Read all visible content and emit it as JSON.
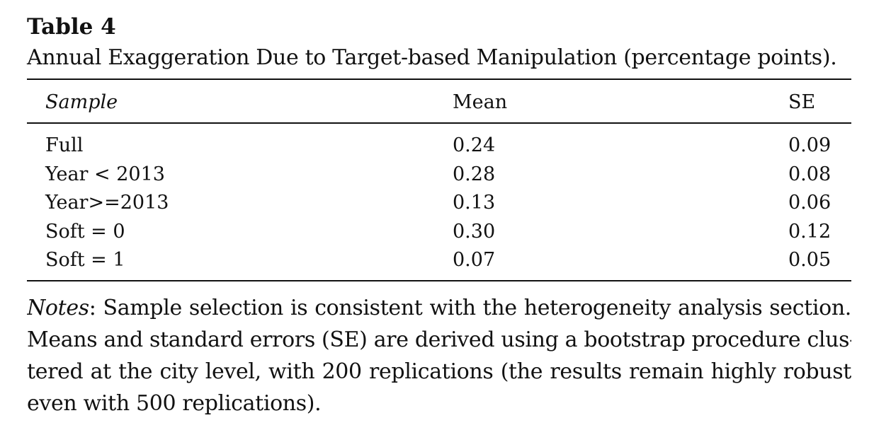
{
  "table": {
    "label": "Table 4",
    "caption": "Annual Exaggeration Due to Target-based Manipulation (percentage points).",
    "headers": {
      "sample": "Sample",
      "mean": "Mean",
      "se": "SE"
    },
    "rows": [
      {
        "sample": "Full",
        "mean": "0.24",
        "se": "0.09"
      },
      {
        "sample": "Year < 2013",
        "mean": "0.28",
        "se": "0.08"
      },
      {
        "sample": "Year>=2013",
        "mean": "0.13",
        "se": "0.06"
      },
      {
        "sample": "Soft = 0",
        "mean": "0.30",
        "se": "0.12"
      },
      {
        "sample": "Soft = 1",
        "mean": "0.07",
        "se": "0.05"
      }
    ]
  },
  "notes": {
    "label": "Notes",
    "lines": [
      ": Sample selection is consistent with the heterogeneity analysis section.",
      "Means and standard errors (SE) are derived using a bootstrap procedure clus-",
      "tered at the city level, with 200 replications (the results remain highly robust",
      "even with 500 replications)."
    ]
  }
}
